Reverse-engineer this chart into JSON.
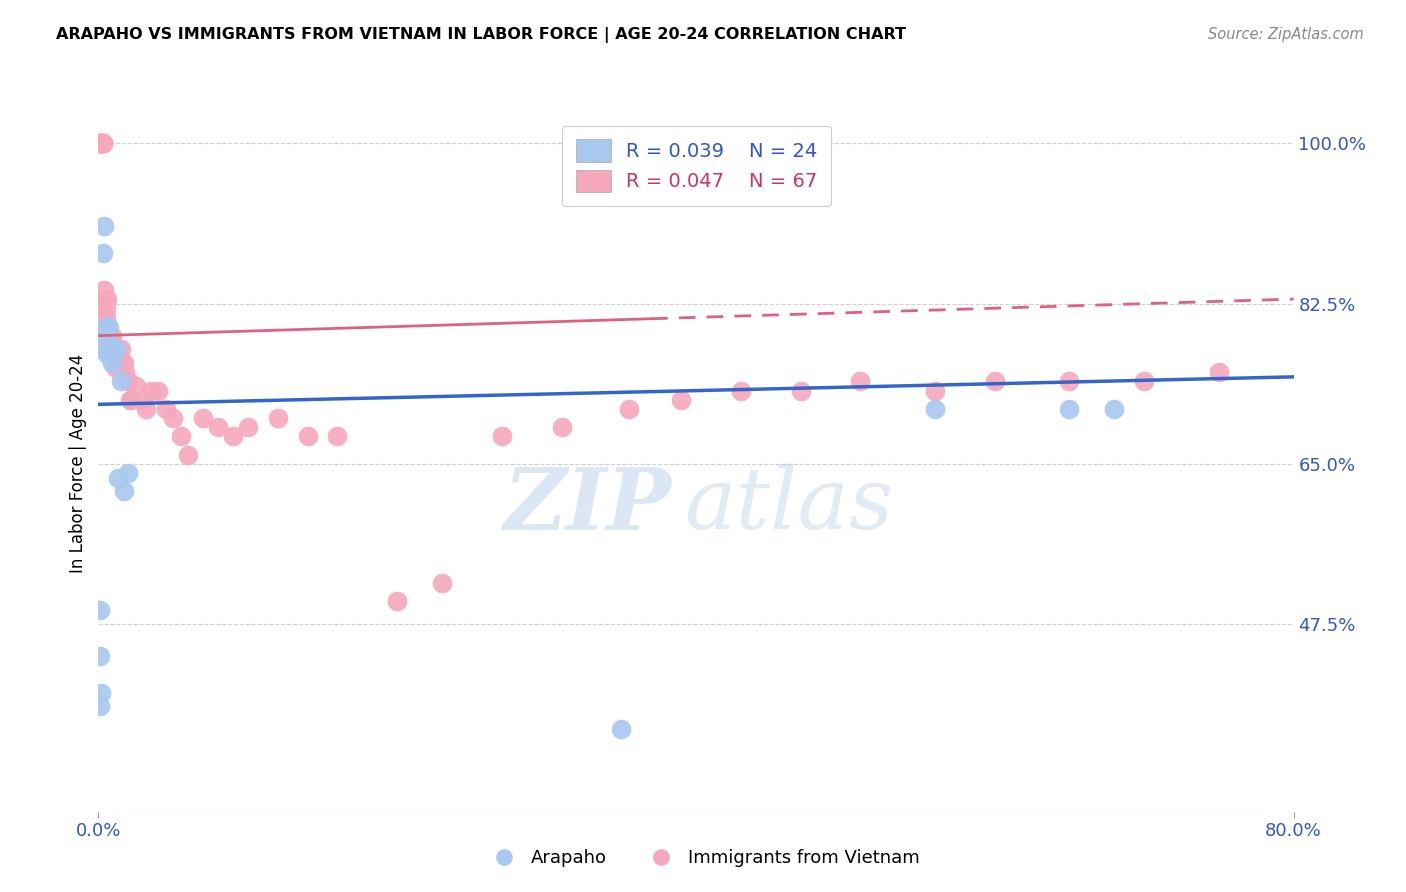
{
  "title": "ARAPAHO VS IMMIGRANTS FROM VIETNAM IN LABOR FORCE | AGE 20-24 CORRELATION CHART",
  "source": "Source: ZipAtlas.com",
  "ylabel": "In Labor Force | Age 20-24",
  "xlim": [
    0.0,
    0.8
  ],
  "ylim": [
    0.27,
    1.03
  ],
  "yticks_right": [
    0.475,
    0.65,
    0.825,
    1.0
  ],
  "ytick_right_labels": [
    "47.5%",
    "65.0%",
    "82.5%",
    "100.0%"
  ],
  "legend_blue_r": "R = 0.039",
  "legend_blue_n": "N = 24",
  "legend_pink_r": "R = 0.047",
  "legend_pink_n": "N = 67",
  "legend_label_blue": "Arapaho",
  "legend_label_pink": "Immigrants from Vietnam",
  "blue_color": "#a8c8f0",
  "pink_color": "#f5a8bc",
  "trend_blue_color": "#3366cc",
  "trend_pink_color": "#e06080",
  "watermark_zip": "ZIP",
  "watermark_atlas": "atlas",
  "arapaho_x": [
    0.001,
    0.001,
    0.002,
    0.003,
    0.004,
    0.005,
    0.006,
    0.006,
    0.007,
    0.008,
    0.009,
    0.01,
    0.011,
    0.012,
    0.013,
    0.015,
    0.017,
    0.02,
    0.35,
    0.56,
    0.65,
    0.68,
    0.001,
    0.002
  ],
  "arapaho_y": [
    0.44,
    0.49,
    0.775,
    0.88,
    0.91,
    0.8,
    0.77,
    0.79,
    0.8,
    0.78,
    0.76,
    0.775,
    0.775,
    0.775,
    0.635,
    0.74,
    0.62,
    0.64,
    0.36,
    0.71,
    0.71,
    0.71,
    0.385,
    0.4
  ],
  "vietnam_x": [
    0.001,
    0.001,
    0.001,
    0.002,
    0.002,
    0.002,
    0.003,
    0.003,
    0.003,
    0.004,
    0.004,
    0.005,
    0.005,
    0.005,
    0.006,
    0.006,
    0.007,
    0.007,
    0.008,
    0.008,
    0.009,
    0.009,
    0.01,
    0.01,
    0.011,
    0.011,
    0.012,
    0.012,
    0.013,
    0.014,
    0.015,
    0.016,
    0.017,
    0.018,
    0.02,
    0.021,
    0.022,
    0.025,
    0.03,
    0.032,
    0.035,
    0.04,
    0.045,
    0.05,
    0.055,
    0.06,
    0.07,
    0.08,
    0.09,
    0.1,
    0.12,
    0.14,
    0.16,
    0.2,
    0.23,
    0.27,
    0.31,
    0.355,
    0.39,
    0.43,
    0.47,
    0.51,
    0.56,
    0.6,
    0.65,
    0.7,
    0.75
  ],
  "vietnam_y": [
    1.0,
    1.0,
    1.0,
    1.0,
    1.0,
    1.0,
    1.0,
    1.0,
    1.0,
    0.84,
    0.83,
    0.82,
    0.81,
    0.8,
    0.83,
    0.79,
    0.79,
    0.79,
    0.78,
    0.77,
    0.79,
    0.78,
    0.775,
    0.775,
    0.77,
    0.76,
    0.775,
    0.755,
    0.77,
    0.77,
    0.775,
    0.76,
    0.76,
    0.75,
    0.74,
    0.72,
    0.72,
    0.735,
    0.72,
    0.71,
    0.73,
    0.73,
    0.71,
    0.7,
    0.68,
    0.66,
    0.7,
    0.69,
    0.68,
    0.69,
    0.7,
    0.68,
    0.68,
    0.5,
    0.52,
    0.68,
    0.69,
    0.71,
    0.72,
    0.73,
    0.73,
    0.74,
    0.73,
    0.74,
    0.74,
    0.74,
    0.75
  ]
}
